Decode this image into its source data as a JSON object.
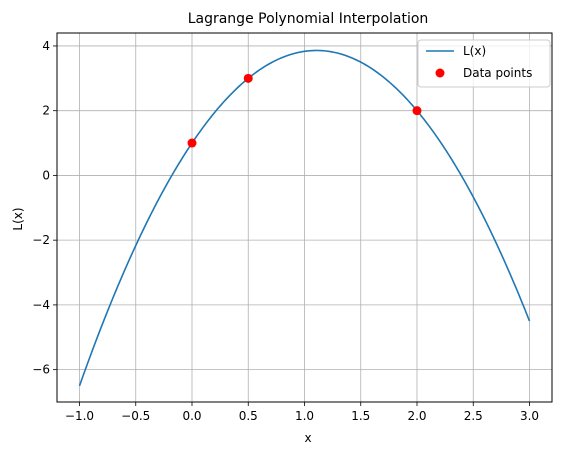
{
  "chart_data": {
    "type": "line",
    "title": "Lagrange Polynomial Interpolation",
    "xlabel": "x",
    "ylabel": "L(x)",
    "xlim": [
      -1.2,
      3.2
    ],
    "ylim": [
      -7.0,
      4.4
    ],
    "xticks": [
      -1.0,
      -0.5,
      0.0,
      0.5,
      1.0,
      1.5,
      2.0,
      2.5,
      3.0
    ],
    "xtick_labels": [
      "−1.0",
      "−0.5",
      "0.0",
      "0.5",
      "1.0",
      "1.5",
      "2.0",
      "2.5",
      "3.0"
    ],
    "yticks": [
      -6,
      -4,
      -2,
      0,
      2,
      4
    ],
    "ytick_labels": [
      "−6",
      "−4",
      "−2",
      "0",
      "2",
      "4"
    ],
    "grid": true,
    "legend_position": "top-right",
    "series": [
      {
        "name": "L(x)",
        "kind": "line",
        "color": "#1f77b4",
        "x_range": [
          -1.0,
          3.0
        ],
        "polynomial": "L(x) = -2.3333x^2 + 5.1667x + 1"
      },
      {
        "name": "Data points",
        "kind": "scatter",
        "color": "#ff0000",
        "points": [
          {
            "x": 0.0,
            "y": 1.0
          },
          {
            "x": 0.5,
            "y": 3.0
          },
          {
            "x": 2.0,
            "y": 2.0
          }
        ]
      }
    ]
  }
}
